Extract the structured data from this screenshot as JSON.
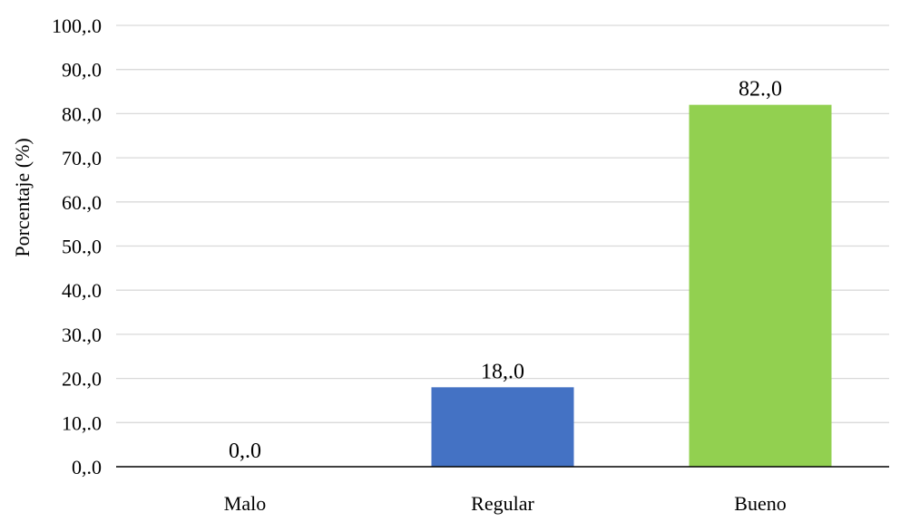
{
  "chart_data": {
    "type": "bar",
    "title": "",
    "xlabel": "",
    "ylabel": "Porcentaje (%)",
    "categories": [
      "Malo",
      "Regular",
      "Bueno"
    ],
    "values": [
      0.0,
      18.0,
      82.0
    ],
    "data_labels": [
      "0,.0",
      "18,.0",
      "82.,0"
    ],
    "ylim": [
      0,
      100
    ],
    "yticks": [
      0,
      10,
      20,
      30,
      40,
      50,
      60,
      70,
      80,
      90,
      100
    ],
    "ytick_labels": [
      "0,.0",
      "10,.0",
      "20.,0",
      "30.,0",
      "40,.0",
      "50.,0",
      "60.,0",
      "70.,0",
      "80.,0",
      "90,.0",
      "100,.0"
    ],
    "bar_colors": [
      "#4472c4",
      "#4472c4",
      "#92d050"
    ],
    "grid": true,
    "legend": "none"
  }
}
